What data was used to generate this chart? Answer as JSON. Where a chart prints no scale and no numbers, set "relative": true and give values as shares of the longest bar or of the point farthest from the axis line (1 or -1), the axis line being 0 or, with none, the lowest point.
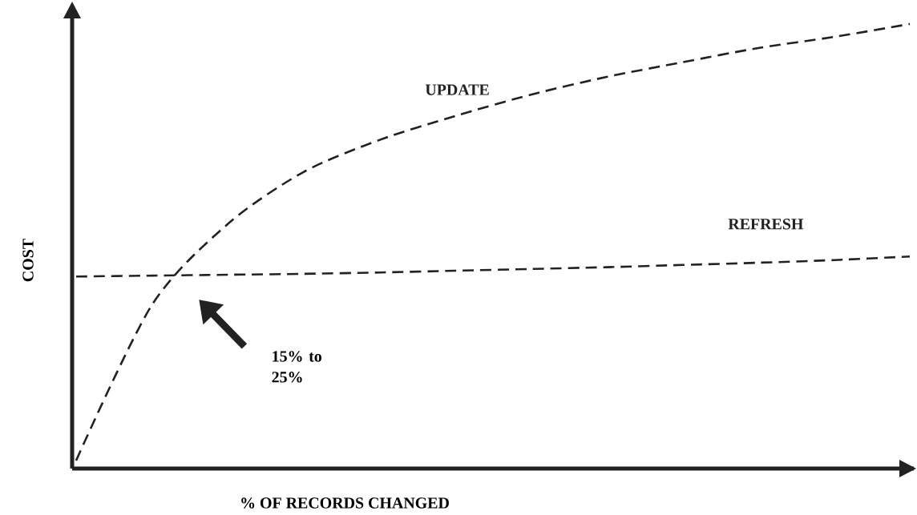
{
  "chart_data": {
    "type": "line",
    "relative": true,
    "xlabel": "% OF RECORDS CHANGED",
    "ylabel": "COST",
    "line_style": "dashed",
    "marker": "none",
    "categories": [
      null,
      null,
      null,
      null,
      null,
      null,
      null,
      null,
      null,
      null,
      null,
      null
    ],
    "series": [
      {
        "name": "UPDATE",
        "color": "#222222",
        "values": [
          0.018,
          0.368,
          0.55,
          0.667,
          0.739,
          0.793,
          0.841,
          0.881,
          0.914,
          0.946,
          0.971,
          1.0
        ]
      },
      {
        "name": "REFRESH",
        "color": "#222222",
        "values": [
          0.432,
          0.434,
          0.436,
          0.438,
          0.441,
          0.445,
          0.449,
          0.453,
          0.458,
          0.463,
          0.469,
          0.477
        ]
      }
    ],
    "annotations": [
      "15% to 25%"
    ]
  }
}
